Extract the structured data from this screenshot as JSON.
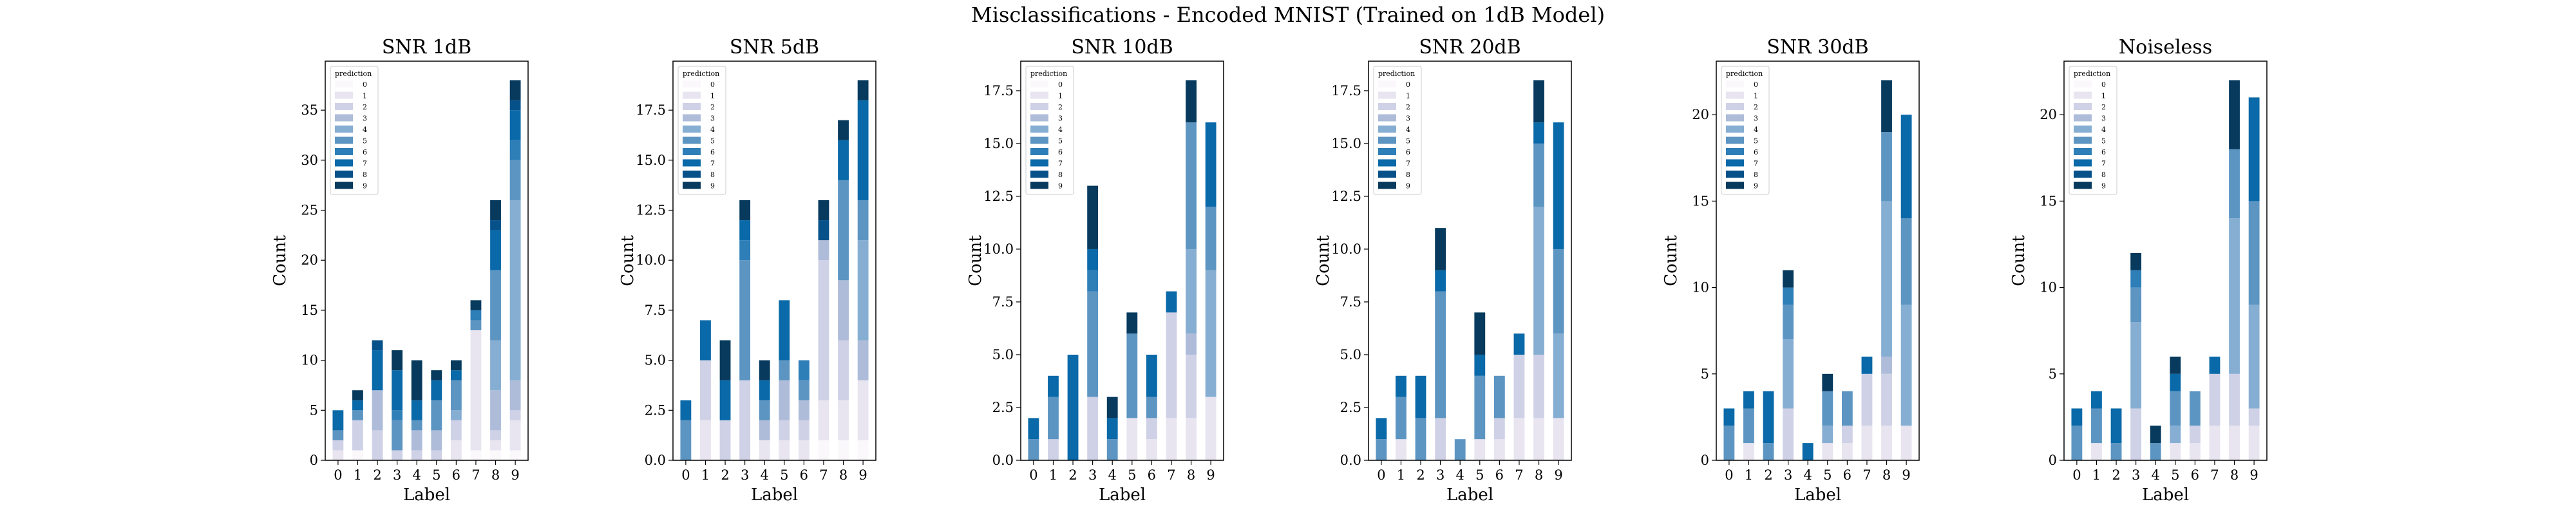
{
  "suptitle": "Misclassifications - Encoded MNIST (Trained on 1dB Model)",
  "legend_title": "prediction",
  "prediction_colors": [
    "#fbf8fc",
    "#e8e5f1",
    "#cfd1e6",
    "#aebcda",
    "#86aed2",
    "#5d95c2",
    "#2e7eb8",
    "#0a69a8",
    "#07518a",
    "#073a5d"
  ],
  "chart_data": [
    {
      "type": "bar",
      "stacked": true,
      "title": "SNR 1dB",
      "xlabel": "Label",
      "ylabel": "Count",
      "categories": [
        "0",
        "1",
        "2",
        "3",
        "4",
        "5",
        "6",
        "7",
        "8",
        "9"
      ],
      "ylim": [
        0,
        39.9
      ],
      "yticks": [
        0,
        5,
        10,
        15,
        20,
        25,
        30,
        35
      ],
      "ytick_labels": [
        "0",
        "5",
        "10",
        "15",
        "20",
        "25",
        "30",
        "35"
      ],
      "legend": "top-left",
      "series": [
        {
          "name": "0",
          "values": [
            0,
            1,
            0,
            0,
            0,
            0,
            0,
            1,
            1,
            1
          ]
        },
        {
          "name": "1",
          "values": [
            1,
            0,
            0,
            0,
            0,
            0,
            2,
            12,
            1,
            3
          ]
        },
        {
          "name": "2",
          "values": [
            1,
            3,
            3,
            1,
            1,
            1,
            2,
            0,
            1,
            1
          ]
        },
        {
          "name": "3",
          "values": [
            0,
            0,
            4,
            0,
            2,
            2,
            0,
            0,
            4,
            3
          ]
        },
        {
          "name": "4",
          "values": [
            0,
            0,
            0,
            0,
            0,
            0,
            1,
            0,
            5,
            18
          ]
        },
        {
          "name": "5",
          "values": [
            1,
            1,
            0,
            3,
            1,
            3,
            3,
            1,
            7,
            4
          ]
        },
        {
          "name": "6",
          "values": [
            0,
            0,
            0,
            1,
            0,
            0,
            0,
            1,
            0,
            2
          ]
        },
        {
          "name": "7",
          "values": [
            2,
            1,
            4,
            4,
            2,
            2,
            1,
            0,
            4,
            3
          ]
        },
        {
          "name": "8",
          "values": [
            0,
            0,
            1,
            0,
            0,
            0,
            0,
            0,
            1,
            1
          ]
        },
        {
          "name": "9",
          "values": [
            0,
            1,
            0,
            2,
            4,
            1,
            1,
            1,
            2,
            2
          ]
        }
      ]
    },
    {
      "type": "bar",
      "stacked": true,
      "title": "SNR 5dB",
      "xlabel": "Label",
      "ylabel": "Count",
      "categories": [
        "0",
        "1",
        "2",
        "3",
        "4",
        "5",
        "6",
        "7",
        "8",
        "9"
      ],
      "ylim": [
        0,
        19.95
      ],
      "yticks": [
        0,
        2.5,
        5,
        7.5,
        10,
        12.5,
        15,
        17.5
      ],
      "ytick_labels": [
        "0.0",
        "2.5",
        "5.0",
        "7.5",
        "10.0",
        "12.5",
        "15.0",
        "17.5"
      ],
      "legend": "top-left",
      "series": [
        {
          "name": "0",
          "values": [
            0,
            0,
            0,
            0,
            0,
            0,
            0,
            1,
            1,
            1
          ]
        },
        {
          "name": "1",
          "values": [
            0,
            2,
            0,
            0,
            1,
            1,
            1,
            2,
            2,
            3
          ]
        },
        {
          "name": "2",
          "values": [
            0,
            3,
            2,
            4,
            0,
            1,
            1,
            7,
            3,
            0
          ]
        },
        {
          "name": "3",
          "values": [
            0,
            0,
            0,
            0,
            1,
            2,
            1,
            1,
            3,
            2
          ]
        },
        {
          "name": "4",
          "values": [
            0,
            0,
            0,
            0,
            0,
            0,
            0,
            0,
            0,
            5
          ]
        },
        {
          "name": "5",
          "values": [
            2,
            0,
            0,
            6,
            1,
            1,
            1,
            0,
            5,
            2
          ]
        },
        {
          "name": "6",
          "values": [
            0,
            0,
            0,
            1,
            0,
            0,
            1,
            0,
            0,
            0
          ]
        },
        {
          "name": "7",
          "values": [
            1,
            2,
            2,
            1,
            1,
            3,
            0,
            0,
            2,
            5
          ]
        },
        {
          "name": "8",
          "values": [
            0,
            0,
            0,
            0,
            0,
            0,
            0,
            1,
            0,
            0
          ]
        },
        {
          "name": "9",
          "values": [
            0,
            0,
            2,
            1,
            1,
            0,
            0,
            1,
            1,
            1
          ]
        }
      ]
    },
    {
      "type": "bar",
      "stacked": true,
      "title": "SNR 10dB",
      "xlabel": "Label",
      "ylabel": "Count",
      "categories": [
        "0",
        "1",
        "2",
        "3",
        "4",
        "5",
        "6",
        "7",
        "8",
        "9"
      ],
      "ylim": [
        0,
        18.9
      ],
      "yticks": [
        0,
        2.5,
        5,
        7.5,
        10,
        12.5,
        15,
        17.5
      ],
      "ytick_labels": [
        "0.0",
        "2.5",
        "5.0",
        "7.5",
        "10.0",
        "12.5",
        "15.0",
        "17.5"
      ],
      "legend": "top-left",
      "series": [
        {
          "name": "0",
          "values": [
            0,
            0,
            0,
            0,
            0,
            0,
            0,
            0,
            0,
            0
          ]
        },
        {
          "name": "1",
          "values": [
            0,
            0,
            0,
            0,
            0,
            2,
            1,
            2,
            2,
            3
          ]
        },
        {
          "name": "2",
          "values": [
            0,
            1,
            0,
            3,
            0,
            0,
            1,
            5,
            3,
            0
          ]
        },
        {
          "name": "3",
          "values": [
            0,
            0,
            0,
            0,
            0,
            0,
            0,
            0,
            1,
            0
          ]
        },
        {
          "name": "4",
          "values": [
            0,
            0,
            0,
            0,
            0,
            0,
            0,
            0,
            4,
            6
          ]
        },
        {
          "name": "5",
          "values": [
            1,
            2,
            0,
            5,
            1,
            4,
            1,
            0,
            6,
            3
          ]
        },
        {
          "name": "6",
          "values": [
            0,
            0,
            0,
            1,
            0,
            0,
            0,
            0,
            0,
            0
          ]
        },
        {
          "name": "7",
          "values": [
            1,
            1,
            5,
            1,
            1,
            0,
            2,
            1,
            0,
            4
          ]
        },
        {
          "name": "8",
          "values": [
            0,
            0,
            0,
            0,
            0,
            0,
            0,
            0,
            0,
            0
          ]
        },
        {
          "name": "9",
          "values": [
            0,
            0,
            0,
            3,
            1,
            1,
            0,
            0,
            2,
            0
          ]
        }
      ]
    },
    {
      "type": "bar",
      "stacked": true,
      "title": "SNR 20dB",
      "xlabel": "Label",
      "ylabel": "Count",
      "categories": [
        "0",
        "1",
        "2",
        "3",
        "4",
        "5",
        "6",
        "7",
        "8",
        "9"
      ],
      "ylim": [
        0,
        18.9
      ],
      "yticks": [
        0,
        2.5,
        5,
        7.5,
        10,
        12.5,
        15,
        17.5
      ],
      "ytick_labels": [
        "0.0",
        "2.5",
        "5.0",
        "7.5",
        "10.0",
        "12.5",
        "15.0",
        "17.5"
      ],
      "legend": "top-left",
      "series": [
        {
          "name": "0",
          "values": [
            0,
            0,
            0,
            0,
            0,
            0,
            0,
            0,
            0,
            0
          ]
        },
        {
          "name": "1",
          "values": [
            0,
            1,
            0,
            0,
            0,
            1,
            1,
            2,
            2,
            2
          ]
        },
        {
          "name": "2",
          "values": [
            0,
            0,
            0,
            2,
            0,
            0,
            1,
            3,
            3,
            0
          ]
        },
        {
          "name": "3",
          "values": [
            0,
            0,
            0,
            0,
            0,
            0,
            0,
            0,
            0,
            0
          ]
        },
        {
          "name": "4",
          "values": [
            0,
            0,
            0,
            0,
            0,
            0,
            0,
            0,
            7,
            4
          ]
        },
        {
          "name": "5",
          "values": [
            1,
            2,
            2,
            6,
            1,
            3,
            2,
            0,
            3,
            4
          ]
        },
        {
          "name": "6",
          "values": [
            0,
            0,
            0,
            0,
            0,
            0,
            0,
            0,
            0,
            0
          ]
        },
        {
          "name": "7",
          "values": [
            1,
            1,
            2,
            1,
            0,
            1,
            0,
            1,
            1,
            6
          ]
        },
        {
          "name": "8",
          "values": [
            0,
            0,
            0,
            0,
            0,
            0,
            0,
            0,
            0,
            0
          ]
        },
        {
          "name": "9",
          "values": [
            0,
            0,
            0,
            2,
            0,
            2,
            0,
            0,
            2,
            0
          ]
        }
      ]
    },
    {
      "type": "bar",
      "stacked": true,
      "title": "SNR 30dB",
      "xlabel": "Label",
      "ylabel": "Count",
      "categories": [
        "0",
        "1",
        "2",
        "3",
        "4",
        "5",
        "6",
        "7",
        "8",
        "9"
      ],
      "ylim": [
        0,
        23.1
      ],
      "yticks": [
        0,
        5,
        10,
        15,
        20
      ],
      "ytick_labels": [
        "0",
        "5",
        "10",
        "15",
        "20"
      ],
      "legend": "top-left",
      "series": [
        {
          "name": "0",
          "values": [
            0,
            0,
            0,
            0,
            0,
            0,
            0,
            0,
            0,
            0
          ]
        },
        {
          "name": "1",
          "values": [
            0,
            1,
            0,
            0,
            0,
            1,
            1,
            2,
            2,
            2
          ]
        },
        {
          "name": "2",
          "values": [
            0,
            0,
            0,
            3,
            0,
            0,
            1,
            3,
            3,
            0
          ]
        },
        {
          "name": "3",
          "values": [
            0,
            0,
            0,
            0,
            0,
            0,
            0,
            0,
            1,
            0
          ]
        },
        {
          "name": "4",
          "values": [
            0,
            0,
            0,
            4,
            0,
            1,
            0,
            0,
            9,
            7
          ]
        },
        {
          "name": "5",
          "values": [
            2,
            2,
            1,
            2,
            0,
            2,
            2,
            0,
            4,
            5
          ]
        },
        {
          "name": "6",
          "values": [
            0,
            0,
            0,
            1,
            0,
            0,
            0,
            0,
            0,
            0
          ]
        },
        {
          "name": "7",
          "values": [
            1,
            1,
            3,
            0,
            1,
            0,
            0,
            1,
            0,
            6
          ]
        },
        {
          "name": "8",
          "values": [
            0,
            0,
            0,
            0,
            0,
            0,
            0,
            0,
            0,
            0
          ]
        },
        {
          "name": "9",
          "values": [
            0,
            0,
            0,
            1,
            0,
            1,
            0,
            0,
            3,
            0
          ]
        }
      ]
    },
    {
      "type": "bar",
      "stacked": true,
      "title": "Noiseless",
      "xlabel": "Label",
      "ylabel": "Count",
      "categories": [
        "0",
        "1",
        "2",
        "3",
        "4",
        "5",
        "6",
        "7",
        "8",
        "9"
      ],
      "ylim": [
        0,
        23.1
      ],
      "yticks": [
        0,
        5,
        10,
        15,
        20
      ],
      "ytick_labels": [
        "0",
        "5",
        "10",
        "15",
        "20"
      ],
      "legend": "top-left",
      "series": [
        {
          "name": "0",
          "values": [
            0,
            0,
            0,
            0,
            0,
            0,
            0,
            0,
            0,
            0
          ]
        },
        {
          "name": "1",
          "values": [
            0,
            1,
            0,
            0,
            0,
            1,
            1,
            2,
            2,
            2
          ]
        },
        {
          "name": "2",
          "values": [
            0,
            0,
            0,
            3,
            0,
            0,
            1,
            3,
            3,
            1
          ]
        },
        {
          "name": "3",
          "values": [
            0,
            0,
            0,
            0,
            0,
            0,
            0,
            0,
            0,
            0
          ]
        },
        {
          "name": "4",
          "values": [
            0,
            0,
            0,
            5,
            0,
            1,
            0,
            0,
            9,
            6
          ]
        },
        {
          "name": "5",
          "values": [
            2,
            2,
            1,
            2,
            1,
            2,
            2,
            0,
            4,
            6
          ]
        },
        {
          "name": "6",
          "values": [
            0,
            0,
            0,
            1,
            0,
            0,
            0,
            0,
            0,
            0
          ]
        },
        {
          "name": "7",
          "values": [
            1,
            1,
            2,
            0,
            0,
            1,
            0,
            1,
            0,
            6
          ]
        },
        {
          "name": "8",
          "values": [
            0,
            0,
            0,
            0,
            0,
            0,
            0,
            0,
            0,
            0
          ]
        },
        {
          "name": "9",
          "values": [
            0,
            0,
            0,
            1,
            1,
            1,
            0,
            0,
            4,
            0
          ]
        }
      ]
    }
  ]
}
